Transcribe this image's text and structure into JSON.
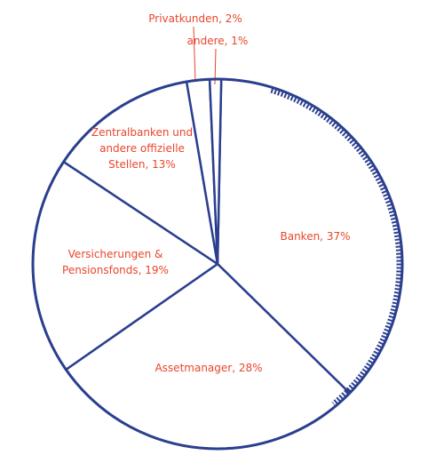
{
  "chart_data": {
    "type": "pie",
    "values": [
      37,
      28,
      19,
      13,
      2,
      1
    ],
    "value_labels": [
      "Banken, 37%",
      "Assetmanager, 28%",
      "Versicherungen & Pensionsfonds, 19%",
      "Zentralbanken und andere offizielle Stellen, 13%",
      "Privatkunden, 2%",
      "andere, 1%"
    ],
    "color": "#2b3f8f",
    "label_color": "#e8452c"
  }
}
